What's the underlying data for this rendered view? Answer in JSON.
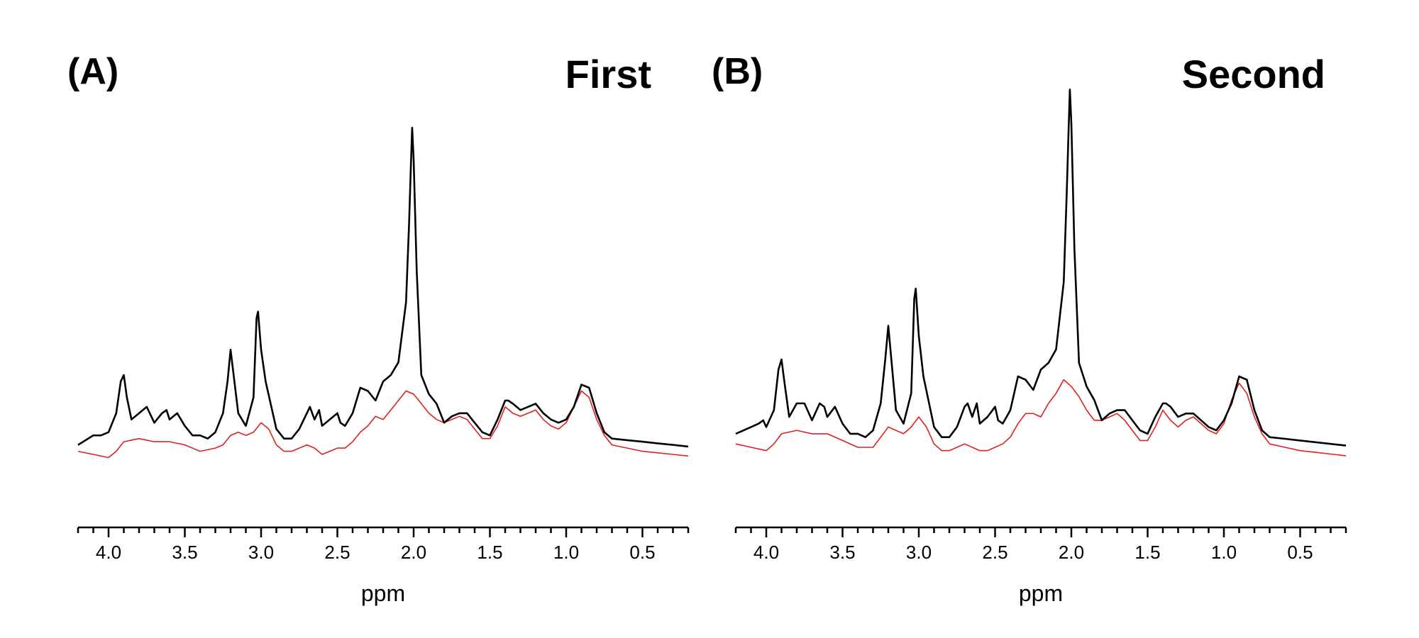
{
  "chart_data": [
    {
      "type": "line",
      "panel_label": "(A)",
      "title": "First",
      "xlabel": "ppm",
      "ylabel": "",
      "x_reversed": true,
      "xlim": [
        4.2,
        0.2
      ],
      "ylim": [
        -0.05,
        1.0
      ],
      "grid": false,
      "x_major_ticks": [
        4.0,
        3.5,
        3.0,
        2.5,
        2.0,
        1.5,
        1.0,
        0.5
      ],
      "tick_labels": [
        "4.0",
        "3.5",
        "3.0",
        "2.5",
        "2.0",
        "1.5",
        "1.0",
        "0.5"
      ],
      "series": [
        {
          "color": "#000000",
          "x": [
            4.2,
            4.1,
            4.05,
            4.0,
            3.95,
            3.92,
            3.9,
            3.88,
            3.85,
            3.8,
            3.75,
            3.7,
            3.65,
            3.62,
            3.6,
            3.55,
            3.5,
            3.45,
            3.4,
            3.35,
            3.3,
            3.25,
            3.22,
            3.2,
            3.18,
            3.15,
            3.1,
            3.05,
            3.03,
            3.02,
            3.0,
            2.97,
            2.9,
            2.85,
            2.8,
            2.75,
            2.7,
            2.68,
            2.65,
            2.62,
            2.6,
            2.55,
            2.5,
            2.48,
            2.45,
            2.4,
            2.35,
            2.3,
            2.25,
            2.2,
            2.15,
            2.1,
            2.05,
            2.03,
            2.02,
            2.01,
            2.0,
            1.98,
            1.95,
            1.9,
            1.85,
            1.8,
            1.75,
            1.7,
            1.65,
            1.6,
            1.55,
            1.5,
            1.45,
            1.4,
            1.38,
            1.35,
            1.3,
            1.25,
            1.2,
            1.15,
            1.1,
            1.05,
            1.0,
            0.95,
            0.9,
            0.85,
            0.8,
            0.75,
            0.7,
            0.6,
            0.5,
            0.4,
            0.3,
            0.2
          ],
          "y": [
            0.0,
            0.03,
            0.03,
            0.04,
            0.1,
            0.2,
            0.22,
            0.15,
            0.08,
            0.1,
            0.12,
            0.07,
            0.1,
            0.11,
            0.08,
            0.1,
            0.06,
            0.03,
            0.03,
            0.02,
            0.04,
            0.1,
            0.2,
            0.3,
            0.22,
            0.1,
            0.06,
            0.15,
            0.4,
            0.42,
            0.3,
            0.2,
            0.05,
            0.02,
            0.02,
            0.05,
            0.1,
            0.12,
            0.08,
            0.11,
            0.06,
            0.08,
            0.1,
            0.07,
            0.06,
            0.1,
            0.18,
            0.17,
            0.14,
            0.2,
            0.22,
            0.26,
            0.45,
            0.7,
            0.85,
            1.0,
            0.9,
            0.55,
            0.22,
            0.16,
            0.13,
            0.07,
            0.09,
            0.1,
            0.1,
            0.07,
            0.04,
            0.03,
            0.08,
            0.14,
            0.14,
            0.13,
            0.11,
            0.12,
            0.13,
            0.1,
            0.08,
            0.07,
            0.08,
            0.12,
            0.19,
            0.18,
            0.1,
            0.04,
            0.02,
            0.015,
            0.01,
            0.005,
            0.0,
            -0.005
          ]
        },
        {
          "color": "#e02020",
          "x": [
            4.2,
            4.1,
            4.0,
            3.95,
            3.9,
            3.8,
            3.7,
            3.6,
            3.5,
            3.4,
            3.3,
            3.25,
            3.2,
            3.15,
            3.1,
            3.05,
            3.0,
            2.95,
            2.9,
            2.85,
            2.8,
            2.75,
            2.7,
            2.65,
            2.6,
            2.55,
            2.5,
            2.45,
            2.4,
            2.35,
            2.3,
            2.25,
            2.2,
            2.15,
            2.1,
            2.05,
            2.0,
            1.95,
            1.9,
            1.85,
            1.8,
            1.75,
            1.7,
            1.65,
            1.6,
            1.55,
            1.5,
            1.45,
            1.4,
            1.35,
            1.3,
            1.25,
            1.2,
            1.15,
            1.1,
            1.05,
            1.0,
            0.95,
            0.9,
            0.85,
            0.8,
            0.75,
            0.7,
            0.6,
            0.5,
            0.4,
            0.3,
            0.2
          ],
          "y": [
            -0.02,
            -0.03,
            -0.04,
            -0.02,
            0.01,
            0.02,
            0.01,
            0.01,
            0.0,
            -0.02,
            -0.01,
            0.0,
            0.03,
            0.04,
            0.03,
            0.04,
            0.07,
            0.05,
            0.0,
            -0.02,
            -0.02,
            -0.01,
            0.0,
            -0.01,
            -0.03,
            -0.02,
            -0.01,
            -0.01,
            0.01,
            0.04,
            0.06,
            0.09,
            0.08,
            0.11,
            0.14,
            0.17,
            0.16,
            0.13,
            0.1,
            0.08,
            0.07,
            0.08,
            0.09,
            0.08,
            0.05,
            0.02,
            0.02,
            0.06,
            0.12,
            0.1,
            0.09,
            0.1,
            0.11,
            0.08,
            0.06,
            0.05,
            0.07,
            0.12,
            0.17,
            0.15,
            0.08,
            0.03,
            0.0,
            -0.01,
            -0.02,
            -0.025,
            -0.03,
            -0.035
          ]
        }
      ]
    },
    {
      "type": "line",
      "panel_label": "(B)",
      "title": "Second",
      "xlabel": "ppm",
      "ylabel": "",
      "x_reversed": true,
      "xlim": [
        4.2,
        0.2
      ],
      "ylim": [
        -0.05,
        1.0
      ],
      "grid": false,
      "x_major_ticks": [
        4.0,
        3.5,
        3.0,
        2.5,
        2.0,
        1.5,
        1.0,
        0.5
      ],
      "tick_labels": [
        "4.0",
        "3.5",
        "3.0",
        "2.5",
        "2.0",
        "1.5",
        "1.0",
        "0.5"
      ],
      "series": [
        {
          "color": "#000000",
          "x": [
            4.2,
            4.1,
            4.05,
            4.02,
            4.0,
            3.95,
            3.92,
            3.9,
            3.88,
            3.85,
            3.8,
            3.75,
            3.7,
            3.65,
            3.62,
            3.6,
            3.55,
            3.5,
            3.45,
            3.4,
            3.35,
            3.3,
            3.25,
            3.22,
            3.2,
            3.18,
            3.15,
            3.1,
            3.05,
            3.03,
            3.02,
            3.0,
            2.97,
            2.9,
            2.85,
            2.8,
            2.75,
            2.7,
            2.68,
            2.65,
            2.62,
            2.6,
            2.55,
            2.5,
            2.48,
            2.45,
            2.4,
            2.35,
            2.3,
            2.25,
            2.2,
            2.15,
            2.1,
            2.05,
            2.03,
            2.02,
            2.01,
            2.0,
            1.98,
            1.95,
            1.9,
            1.85,
            1.8,
            1.75,
            1.7,
            1.65,
            1.6,
            1.55,
            1.5,
            1.45,
            1.4,
            1.38,
            1.35,
            1.3,
            1.25,
            1.2,
            1.15,
            1.1,
            1.05,
            1.0,
            0.95,
            0.9,
            0.85,
            0.8,
            0.75,
            0.7,
            0.6,
            0.5,
            0.4,
            0.3,
            0.2
          ],
          "y": [
            0.03,
            0.05,
            0.06,
            0.07,
            0.05,
            0.1,
            0.22,
            0.25,
            0.18,
            0.08,
            0.12,
            0.12,
            0.07,
            0.12,
            0.11,
            0.08,
            0.11,
            0.06,
            0.03,
            0.03,
            0.02,
            0.04,
            0.12,
            0.25,
            0.35,
            0.25,
            0.1,
            0.06,
            0.15,
            0.43,
            0.46,
            0.32,
            0.2,
            0.05,
            0.02,
            0.02,
            0.05,
            0.11,
            0.12,
            0.08,
            0.12,
            0.06,
            0.08,
            0.11,
            0.07,
            0.06,
            0.1,
            0.2,
            0.19,
            0.16,
            0.22,
            0.24,
            0.28,
            0.48,
            0.75,
            0.9,
            1.05,
            0.95,
            0.58,
            0.24,
            0.17,
            0.13,
            0.07,
            0.09,
            0.1,
            0.1,
            0.07,
            0.04,
            0.03,
            0.08,
            0.12,
            0.12,
            0.11,
            0.08,
            0.09,
            0.09,
            0.07,
            0.05,
            0.04,
            0.07,
            0.12,
            0.2,
            0.19,
            0.1,
            0.04,
            0.02,
            0.015,
            0.01,
            0.005,
            0.0,
            -0.005
          ]
        },
        {
          "color": "#e02020",
          "x": [
            4.2,
            4.1,
            4.0,
            3.95,
            3.9,
            3.8,
            3.7,
            3.6,
            3.5,
            3.4,
            3.3,
            3.25,
            3.2,
            3.15,
            3.1,
            3.05,
            3.0,
            2.95,
            2.9,
            2.85,
            2.8,
            2.75,
            2.7,
            2.65,
            2.6,
            2.55,
            2.5,
            2.45,
            2.4,
            2.35,
            2.3,
            2.25,
            2.2,
            2.15,
            2.1,
            2.05,
            2.0,
            1.95,
            1.9,
            1.85,
            1.8,
            1.75,
            1.7,
            1.65,
            1.6,
            1.55,
            1.5,
            1.45,
            1.4,
            1.35,
            1.3,
            1.25,
            1.2,
            1.15,
            1.1,
            1.05,
            1.0,
            0.95,
            0.9,
            0.85,
            0.8,
            0.75,
            0.7,
            0.6,
            0.5,
            0.4,
            0.3,
            0.2
          ],
          "y": [
            0.0,
            -0.01,
            -0.02,
            0.0,
            0.03,
            0.04,
            0.03,
            0.03,
            0.01,
            -0.01,
            -0.01,
            0.02,
            0.05,
            0.04,
            0.03,
            0.05,
            0.08,
            0.05,
            0.0,
            -0.02,
            -0.02,
            -0.01,
            0.0,
            -0.01,
            -0.02,
            -0.02,
            -0.01,
            0.0,
            0.02,
            0.06,
            0.09,
            0.09,
            0.08,
            0.12,
            0.15,
            0.19,
            0.17,
            0.14,
            0.1,
            0.07,
            0.07,
            0.08,
            0.09,
            0.07,
            0.04,
            0.01,
            0.01,
            0.05,
            0.1,
            0.07,
            0.05,
            0.07,
            0.08,
            0.06,
            0.04,
            0.03,
            0.06,
            0.13,
            0.18,
            0.15,
            0.08,
            0.03,
            0.0,
            -0.01,
            -0.02,
            -0.025,
            -0.03,
            -0.035
          ]
        }
      ]
    }
  ]
}
